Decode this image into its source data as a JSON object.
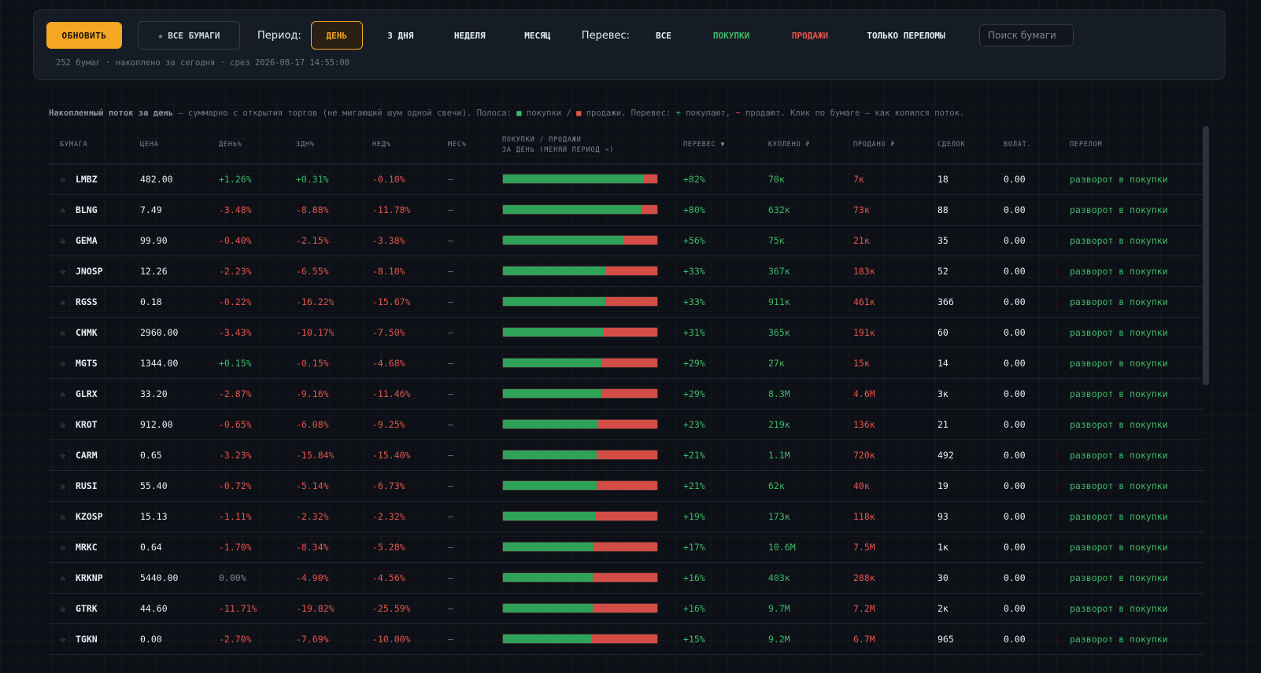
{
  "toolbar": {
    "refresh_label": "ОБНОВИТЬ",
    "all_papers_label": "ВСЕ БУМАГИ",
    "period_label": "Период:",
    "periods": [
      "ДЕНЬ",
      "3 ДНЯ",
      "НЕДЕЛЯ",
      "МЕСЯЦ"
    ],
    "active_period": "ДЕНЬ",
    "balance_label": "Перевес:",
    "balance_filters": [
      "ВСЕ",
      "ПОКУПКИ",
      "ПРОДАЖИ",
      "ТОЛЬКО ПЕРЕЛОМЫ"
    ],
    "search_placeholder": "Поиск бумаги",
    "status": "252 бумаг · накоплено за сегодня · срез 2026-08-17 14:55:00"
  },
  "legend": {
    "title": "Накопленный поток за день",
    "text1": " — суммарно с открытия торгов (не мигающий шум одной свечи). Полоса: ",
    "buy_sq": "■",
    "text2": " покупки / ",
    "sell_sq": "■",
    "text3": " продажи. Перевес: ",
    "plus": "+",
    "text4": " покупают, ",
    "minus": "−",
    "text5": " продают. Клик по бумаге — как копился поток."
  },
  "columns": {
    "ticker": "БУМАГА",
    "price": "ЦЕНА",
    "day": "ДЕНЬ%",
    "d3": "3ДН%",
    "week": "НЕД%",
    "month": "МЕС%",
    "bar_line1": "ПОКУПКИ / ПРОДАЖИ",
    "bar_line2": "ЗА ДЕНЬ (МЕНЯЙ ПЕРИОД →)",
    "balance": "ПЕРЕВЕС ▼",
    "bought": "КУПЛЕНО ₽",
    "sold": "ПРОДАНО ₽",
    "trades": "СДЕЛОК",
    "volat": "ВОЛАТ.",
    "turn": "ПЕРЕЛОМ"
  },
  "colors": {
    "accent": "#f5a623",
    "buy": "#2ea259",
    "sell": "#d44c46",
    "bg": "#0d1117"
  },
  "rows": [
    {
      "ticker": "LMBZ",
      "price": "482.00",
      "day": "+1.26%",
      "d3": "+0.31%",
      "week": "-0.10%",
      "month": "—",
      "buy_share": 0.91,
      "balance": "+82%",
      "bought": "70к",
      "sold": "7к",
      "trades": "18",
      "volat": "0.00",
      "turn": "разворот в покупки"
    },
    {
      "ticker": "BLNG",
      "price": "7.49",
      "day": "-3.48%",
      "d3": "-8.88%",
      "week": "-11.78%",
      "month": "—",
      "buy_share": 0.9,
      "balance": "+80%",
      "bought": "632к",
      "sold": "73к",
      "trades": "88",
      "volat": "0.00",
      "turn": "разворот в покупки"
    },
    {
      "ticker": "GEMA",
      "price": "99.90",
      "day": "-0.40%",
      "d3": "-2.15%",
      "week": "-3.38%",
      "month": "—",
      "buy_share": 0.78,
      "balance": "+56%",
      "bought": "75к",
      "sold": "21к",
      "trades": "35",
      "volat": "0.00",
      "turn": "разворот в покупки"
    },
    {
      "ticker": "JNOSP",
      "price": "12.26",
      "day": "-2.23%",
      "d3": "-6.55%",
      "week": "-8.10%",
      "month": "—",
      "buy_share": 0.665,
      "balance": "+33%",
      "bought": "367к",
      "sold": "183к",
      "trades": "52",
      "volat": "0.00",
      "turn": "разворот в покупки"
    },
    {
      "ticker": "RGSS",
      "price": "0.18",
      "day": "-0.22%",
      "d3": "-16.22%",
      "week": "-15.67%",
      "month": "—",
      "buy_share": 0.665,
      "balance": "+33%",
      "bought": "911к",
      "sold": "461к",
      "trades": "366",
      "volat": "0.00",
      "turn": "разворот в покупки"
    },
    {
      "ticker": "CHMK",
      "price": "2960.00",
      "day": "-3.43%",
      "d3": "-10.17%",
      "week": "-7.50%",
      "month": "—",
      "buy_share": 0.655,
      "balance": "+31%",
      "bought": "365к",
      "sold": "191к",
      "trades": "60",
      "volat": "0.00",
      "turn": "разворот в покупки"
    },
    {
      "ticker": "MGTS",
      "price": "1344.00",
      "day": "+0.15%",
      "d3": "-0.15%",
      "week": "-4.68%",
      "month": "—",
      "buy_share": 0.645,
      "balance": "+29%",
      "bought": "27к",
      "sold": "15к",
      "trades": "14",
      "volat": "0.00",
      "turn": "разворот в покупки"
    },
    {
      "ticker": "GLRX",
      "price": "33.20",
      "day": "-2.87%",
      "d3": "-9.16%",
      "week": "-11.46%",
      "month": "—",
      "buy_share": 0.645,
      "balance": "+29%",
      "bought": "8.3М",
      "sold": "4.6М",
      "trades": "3к",
      "volat": "0.00",
      "turn": "разворот в покупки"
    },
    {
      "ticker": "KROT",
      "price": "912.00",
      "day": "-0.65%",
      "d3": "-6.08%",
      "week": "-9.25%",
      "month": "—",
      "buy_share": 0.615,
      "balance": "+23%",
      "bought": "219к",
      "sold": "136к",
      "trades": "21",
      "volat": "0.00",
      "turn": "разворот в покупки"
    },
    {
      "ticker": "CARM",
      "price": "0.65",
      "day": "-3.23%",
      "d3": "-15.84%",
      "week": "-15.40%",
      "month": "—",
      "buy_share": 0.605,
      "balance": "+21%",
      "bought": "1.1М",
      "sold": "720к",
      "trades": "492",
      "volat": "0.00",
      "turn": "разворот в покупки"
    },
    {
      "ticker": "RUSI",
      "price": "55.40",
      "day": "-0.72%",
      "d3": "-5.14%",
      "week": "-6.73%",
      "month": "—",
      "buy_share": 0.605,
      "balance": "+21%",
      "bought": "62к",
      "sold": "40к",
      "trades": "19",
      "volat": "0.00",
      "turn": "разворот в покупки"
    },
    {
      "ticker": "KZOSP",
      "price": "15.13",
      "day": "-1.11%",
      "d3": "-2.32%",
      "week": "-2.32%",
      "month": "—",
      "buy_share": 0.595,
      "balance": "+19%",
      "bought": "173к",
      "sold": "118к",
      "trades": "93",
      "volat": "0.00",
      "turn": "разворот в покупки"
    },
    {
      "ticker": "MRKC",
      "price": "0.64",
      "day": "-1.70%",
      "d3": "-8.34%",
      "week": "-5.28%",
      "month": "—",
      "buy_share": 0.585,
      "balance": "+17%",
      "bought": "10.6М",
      "sold": "7.5М",
      "trades": "1к",
      "volat": "0.00",
      "turn": "разворот в покупки"
    },
    {
      "ticker": "KRKNP",
      "price": "5440.00",
      "day": "0.00%",
      "d3": "-4.90%",
      "week": "-4.56%",
      "month": "—",
      "buy_share": 0.58,
      "balance": "+16%",
      "bought": "403к",
      "sold": "288к",
      "trades": "30",
      "volat": "0.00",
      "turn": "разворот в покупки"
    },
    {
      "ticker": "GTRK",
      "price": "44.60",
      "day": "-11.71%",
      "d3": "-19.82%",
      "week": "-25.59%",
      "month": "—",
      "buy_share": 0.58,
      "balance": "+16%",
      "bought": "9.7М",
      "sold": "7.2М",
      "trades": "2к",
      "volat": "0.00",
      "turn": "разворот в покупки"
    },
    {
      "ticker": "TGKN",
      "price": "0.00",
      "day": "-2.70%",
      "d3": "-7.69%",
      "week": "-10.00%",
      "month": "—",
      "buy_share": 0.575,
      "balance": "+15%",
      "bought": "9.2М",
      "sold": "6.7М",
      "trades": "965",
      "volat": "0.00",
      "turn": "разворот в покупки"
    }
  ]
}
